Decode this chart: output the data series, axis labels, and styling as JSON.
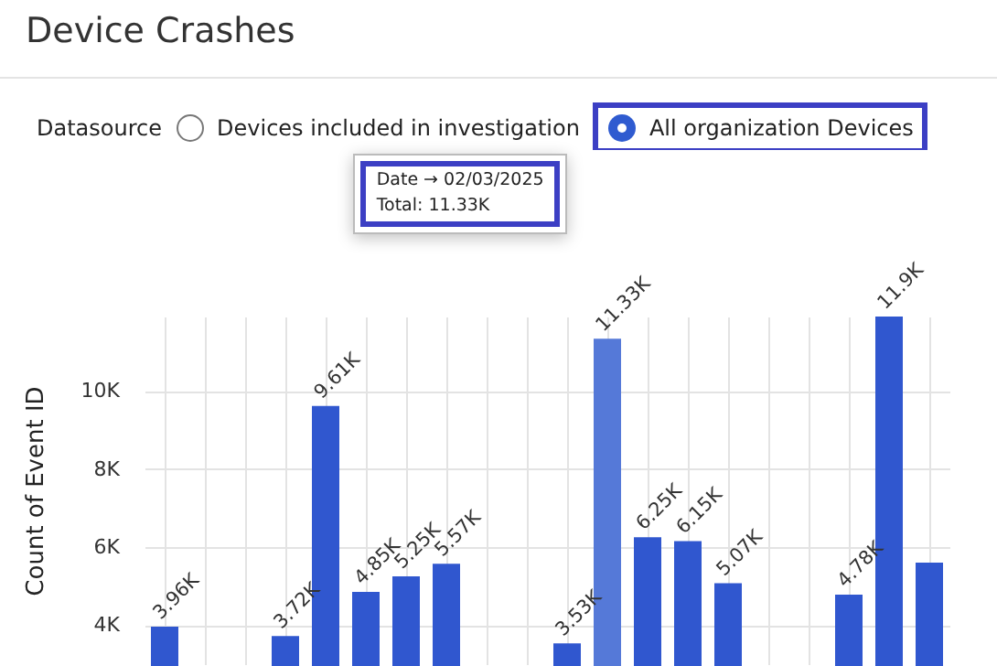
{
  "chart_data": {
    "type": "bar",
    "title": "Device Crashes",
    "annotations": [
      "Datasource",
      "Devices included in investigation",
      "All organization Devices",
      "Date → 02/03/2025",
      "Total: 11.33K"
    ],
    "ylabel": "Count of Event ID",
    "categories": [
      null,
      null,
      null,
      null,
      null,
      null,
      null,
      null,
      null,
      null,
      null,
      null,
      null,
      null,
      null,
      null,
      null,
      null,
      null,
      null
    ],
    "values": [
      3960,
      null,
      null,
      3720,
      9610,
      4850,
      5250,
      5570,
      null,
      null,
      3530,
      11330,
      6250,
      6150,
      5070,
      null,
      null,
      4780,
      11900,
      5600
    ],
    "colors": [
      "#3057cf",
      "#3057cf",
      "#3057cf",
      "#3057cf",
      "#3057cf",
      "#3057cf",
      "#3057cf",
      "#3057cf",
      "#3057cf",
      "#3057cf",
      "#3057cf",
      "#5579d8",
      "#3057cf",
      "#3057cf",
      "#3057cf",
      "#3057cf",
      "#3057cf",
      "#3057cf",
      "#3057cf",
      "#3057cf"
    ],
    "value_labels": [
      "3.96K",
      null,
      null,
      "3.72K",
      "9.61K",
      "4.85K",
      "5.25K",
      "5.57K",
      null,
      null,
      "3.53K",
      "11.33K",
      "6.25K",
      "6.15K",
      "5.07K",
      null,
      null,
      "4.78K",
      "11.9K",
      null
    ],
    "ylim": [
      3000,
      11900
    ],
    "yticks": [
      {
        "value": 4000,
        "label": "4K"
      },
      {
        "value": 6000,
        "label": "6K"
      },
      {
        "value": 8000,
        "label": "8K"
      },
      {
        "value": 10000,
        "label": "10K"
      }
    ],
    "tick_labels": "y",
    "grid": true
  }
}
